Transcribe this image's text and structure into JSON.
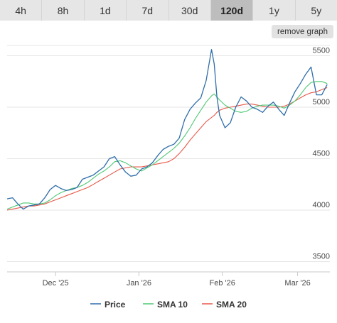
{
  "tabs": [
    {
      "label": "4h",
      "active": false
    },
    {
      "label": "8h",
      "active": false
    },
    {
      "label": "1d",
      "active": false
    },
    {
      "label": "7d",
      "active": false
    },
    {
      "label": "30d",
      "active": false
    },
    {
      "label": "120d",
      "active": true
    },
    {
      "label": "1y",
      "active": false
    },
    {
      "label": "5y",
      "active": false
    }
  ],
  "remove_graph_label": "remove graph",
  "chart_data": {
    "type": "line",
    "title": "",
    "xlabel": "",
    "ylabel": "",
    "ylim": [
      3400,
      5600
    ],
    "xlim": [
      "2025-11-13",
      "2026-03-13"
    ],
    "y_ticks": [
      3500,
      4000,
      4500,
      5000,
      5500
    ],
    "x_ticks": [
      {
        "label": "Dec '25",
        "date": "2025-12-01"
      },
      {
        "label": "Jan '26",
        "date": "2026-01-01"
      },
      {
        "label": "Feb '26",
        "date": "2026-02-01"
      },
      {
        "label": "Mar '26",
        "date": "2026-03-01"
      }
    ],
    "grid": "horizontal",
    "legend_position": "bottom",
    "x": [
      "2025-11-13",
      "2025-11-15",
      "2025-11-17",
      "2025-11-19",
      "2025-11-21",
      "2025-11-23",
      "2025-11-25",
      "2025-11-27",
      "2025-11-29",
      "2025-12-01",
      "2025-12-03",
      "2025-12-05",
      "2025-12-07",
      "2025-12-09",
      "2025-12-11",
      "2025-12-13",
      "2025-12-15",
      "2025-12-17",
      "2025-12-19",
      "2025-12-21",
      "2025-12-23",
      "2025-12-25",
      "2025-12-27",
      "2025-12-29",
      "2025-12-31",
      "2026-01-02",
      "2026-01-04",
      "2026-01-06",
      "2026-01-08",
      "2026-01-10",
      "2026-01-12",
      "2026-01-14",
      "2026-01-16",
      "2026-01-18",
      "2026-01-20",
      "2026-01-22",
      "2026-01-24",
      "2026-01-26",
      "2026-01-28",
      "2026-01-29",
      "2026-01-30",
      "2026-01-31",
      "2026-02-02",
      "2026-02-04",
      "2026-02-06",
      "2026-02-08",
      "2026-02-10",
      "2026-02-12",
      "2026-02-14",
      "2026-02-16",
      "2026-02-18",
      "2026-02-20",
      "2026-02-22",
      "2026-02-24",
      "2026-02-26",
      "2026-02-28",
      "2026-03-02",
      "2026-03-04",
      "2026-03-06",
      "2026-03-08",
      "2026-03-10",
      "2026-03-12"
    ],
    "series": [
      {
        "name": "Price",
        "color": "#2f6eaa",
        "values": [
          4110,
          4120,
          4060,
          4010,
          4040,
          4050,
          4060,
          4120,
          4200,
          4240,
          4210,
          4190,
          4200,
          4220,
          4300,
          4320,
          4340,
          4380,
          4420,
          4500,
          4520,
          4440,
          4370,
          4330,
          4340,
          4400,
          4420,
          4460,
          4530,
          4590,
          4620,
          4640,
          4700,
          4880,
          4980,
          5040,
          5090,
          5260,
          5560,
          5420,
          5100,
          4920,
          4800,
          4850,
          5000,
          5100,
          5060,
          5000,
          4980,
          4950,
          5010,
          5050,
          4980,
          4920,
          5040,
          5150,
          5230,
          5320,
          5390,
          5120,
          5120,
          5220
        ]
      },
      {
        "name": "SMA 10",
        "color": "#4fc873",
        "values": [
          4010,
          4030,
          4050,
          4070,
          4070,
          4060,
          4060,
          4070,
          4100,
          4140,
          4170,
          4190,
          4210,
          4220,
          4240,
          4270,
          4310,
          4350,
          4380,
          4420,
          4470,
          4480,
          4460,
          4430,
          4400,
          4380,
          4410,
          4440,
          4480,
          4520,
          4560,
          4600,
          4650,
          4720,
          4800,
          4890,
          4970,
          5050,
          5110,
          5130,
          5100,
          5070,
          5020,
          4990,
          4960,
          4950,
          4960,
          4990,
          5010,
          5020,
          5020,
          5020,
          5010,
          4990,
          5020,
          5060,
          5120,
          5190,
          5240,
          5250,
          5250,
          5230
        ]
      },
      {
        "name": "SMA 20",
        "color": "#e8584a",
        "values": [
          4000,
          4010,
          4020,
          4030,
          4040,
          4040,
          4050,
          4060,
          4080,
          4100,
          4120,
          4140,
          4160,
          4180,
          4200,
          4220,
          4250,
          4280,
          4310,
          4340,
          4370,
          4400,
          4410,
          4420,
          4420,
          4420,
          4430,
          4440,
          4450,
          4460,
          4470,
          4500,
          4550,
          4610,
          4680,
          4740,
          4800,
          4860,
          4900,
          4920,
          4950,
          4970,
          4990,
          5000,
          5010,
          5020,
          5030,
          5030,
          5020,
          5010,
          5000,
          5000,
          5000,
          5010,
          5030,
          5060,
          5090,
          5120,
          5140,
          5150,
          5170,
          5190
        ]
      }
    ]
  }
}
